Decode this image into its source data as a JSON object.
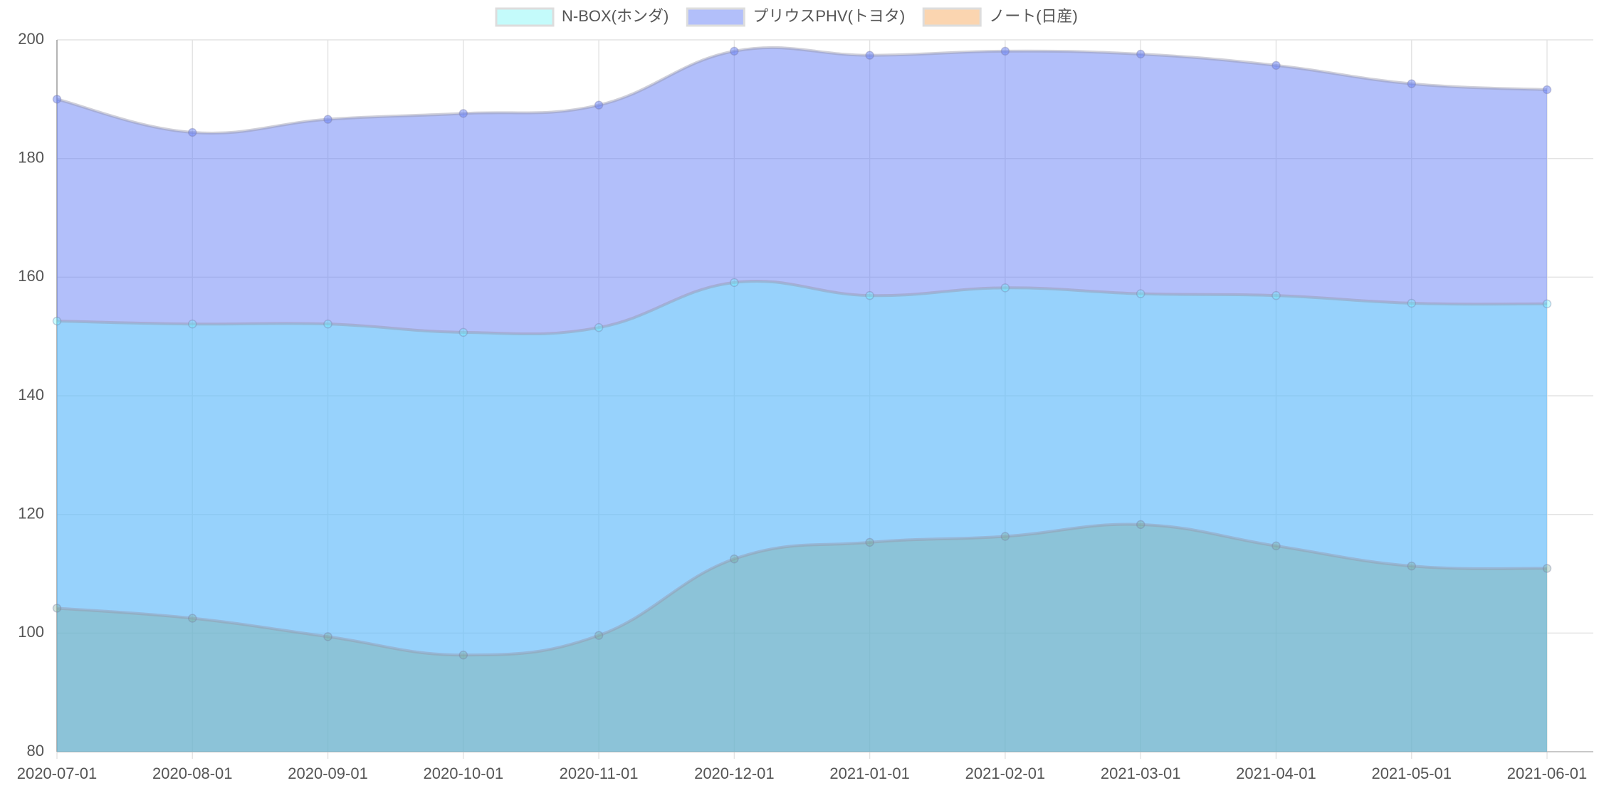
{
  "chart_data": {
    "type": "area",
    "categories": [
      "2020-07-01",
      "2020-08-01",
      "2020-09-01",
      "2020-10-01",
      "2020-11-01",
      "2020-12-01",
      "2021-01-01",
      "2021-02-01",
      "2021-03-01",
      "2021-04-01",
      "2021-05-01",
      "2021-06-01"
    ],
    "series": [
      {
        "name": "N-BOX(ホンダ)",
        "color": "#c4fbfb",
        "fill": "rgba(100,245,255,0.35)",
        "values": [
          152.6,
          152.1,
          152.1,
          150.7,
          151.5,
          159.1,
          156.9,
          158.2,
          157.2,
          156.9,
          155.6,
          155.5
        ]
      },
      {
        "name": "プリウスPHV(トヨタ)",
        "color": "#b2bffa",
        "fill": "rgba(102,128,245,0.5)",
        "values": [
          190.0,
          184.4,
          186.6,
          187.6,
          189.0,
          198.1,
          197.4,
          198.1,
          197.6,
          195.7,
          192.6,
          191.6
        ]
      },
      {
        "name": "ノート(日産)",
        "color": "#fbd5b0",
        "fill": "rgba(120,170,150,0.35)",
        "values": [
          104.2,
          102.5,
          99.4,
          96.3,
          99.6,
          112.5,
          115.3,
          116.3,
          118.3,
          114.7,
          111.3,
          110.9
        ]
      }
    ],
    "ylim": [
      80,
      200
    ],
    "yticks": [
      80,
      100,
      120,
      140,
      160,
      180,
      200
    ],
    "grid": true,
    "legend": "top"
  }
}
